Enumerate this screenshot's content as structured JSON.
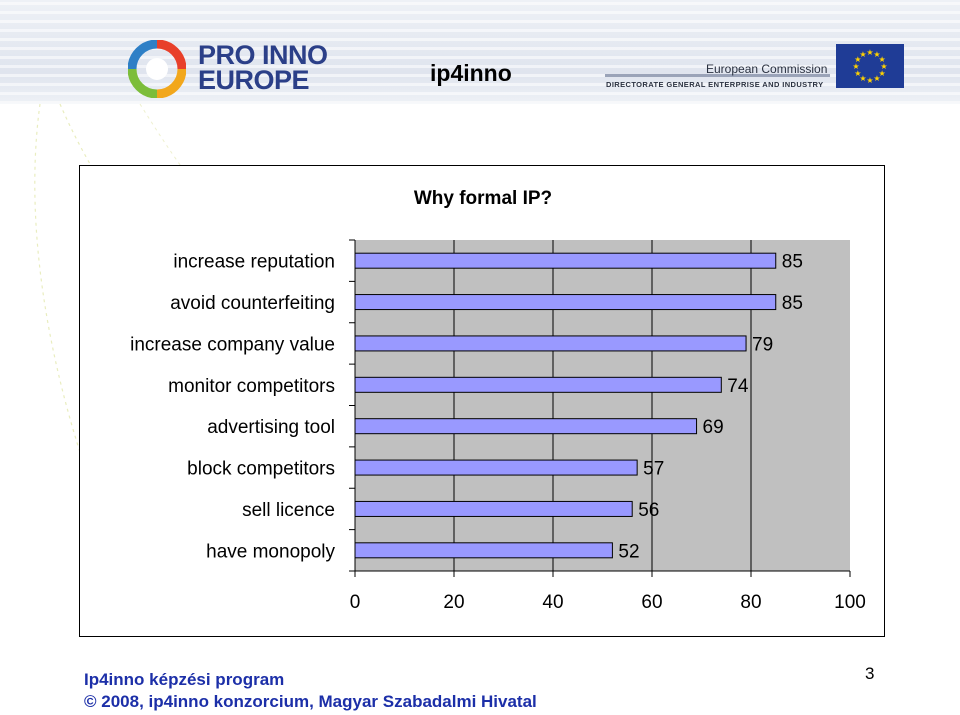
{
  "header": {
    "logo_text_line1": "PRO INNO",
    "logo_text_line2": "EUROPE",
    "title": "ip4inno",
    "ec_name": "European Commission",
    "ec_subtitle": "DIRECTORATE GENERAL ENTERPRISE AND INDUSTRY",
    "logo_icon": "pro-inno-europe-logo",
    "flag_icon": "eu-flag"
  },
  "chart_data": {
    "type": "bar",
    "orientation": "horizontal",
    "title": "Why formal IP?",
    "categories": [
      "increase reputation",
      "avoid counterfeiting",
      "increase company value",
      "monitor competitors",
      "advertising tool",
      "block competitors",
      "sell licence",
      "have monopoly"
    ],
    "values": [
      85,
      85,
      79,
      74,
      69,
      57,
      56,
      52
    ],
    "xlim": [
      0,
      100
    ],
    "xticks": [
      0,
      20,
      40,
      60,
      80,
      100
    ],
    "grid": "vertical",
    "bar_color": "#9999ff",
    "plot_background": "#c0c0c0"
  },
  "footer": {
    "line1": "Ip4inno képzési program",
    "line2": "© 2008, ip4inno konzorcium, Magyar Szabadalmi Hivatal",
    "page_number": "3",
    "text_color": "#1c2fa8"
  }
}
